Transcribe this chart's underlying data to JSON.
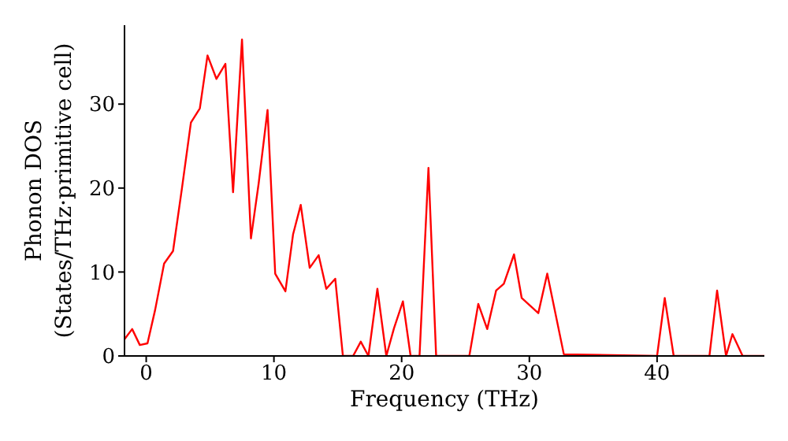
{
  "chart_data": {
    "type": "line",
    "xlabel": "Frequency (THz)",
    "ylabel": "Phonon DOS\n(States/THz·primitive cell)",
    "x": [
      -1.7,
      -1.1,
      -0.5,
      0.1,
      0.7,
      1.4,
      2.1,
      2.8,
      3.5,
      4.2,
      4.8,
      5.5,
      6.2,
      6.8,
      7.5,
      8.2,
      8.8,
      9.5,
      10.1,
      10.9,
      11.5,
      12.1,
      12.8,
      13.5,
      14.1,
      14.8,
      15.4,
      16.2,
      16.8,
      17.4,
      18.1,
      18.8,
      19.4,
      20.1,
      20.7,
      21.4,
      22.1,
      22.7,
      25.3,
      26.0,
      26.7,
      27.4,
      28.0,
      28.8,
      29.4,
      30.7,
      31.4,
      32.7,
      40.0,
      40.6,
      41.3,
      44.1,
      44.7,
      45.4,
      45.9,
      46.7,
      48.4
    ],
    "series": [
      {
        "color": "#ff0000",
        "values": [
          2.0,
          3.2,
          1.3,
          1.5,
          5.5,
          11,
          12.5,
          20,
          27.8,
          29.5,
          35.8,
          33,
          34.8,
          19.5,
          37.7,
          14,
          20.5,
          29.3,
          9.8,
          7.7,
          14.5,
          18,
          10.5,
          12,
          8,
          9.2,
          0,
          0,
          1.7,
          0,
          8,
          0,
          3.3,
          6.5,
          0,
          0,
          22.4,
          0,
          0,
          6.2,
          3.2,
          7.8,
          8.6,
          12.1,
          6.9,
          5.1,
          9.8,
          0.2,
          0,
          6.9,
          0,
          0,
          7.8,
          0,
          2.6,
          0,
          0
        ]
      }
    ],
    "xlim": [
      -1.7,
      48.4
    ],
    "xticks": [
      0,
      10,
      20,
      30,
      40
    ],
    "ylim": [
      0,
      39.4
    ],
    "yticks": [
      0,
      10,
      20,
      30
    ],
    "grid": false,
    "legend": false,
    "marker": "none",
    "line_style": "solid"
  }
}
